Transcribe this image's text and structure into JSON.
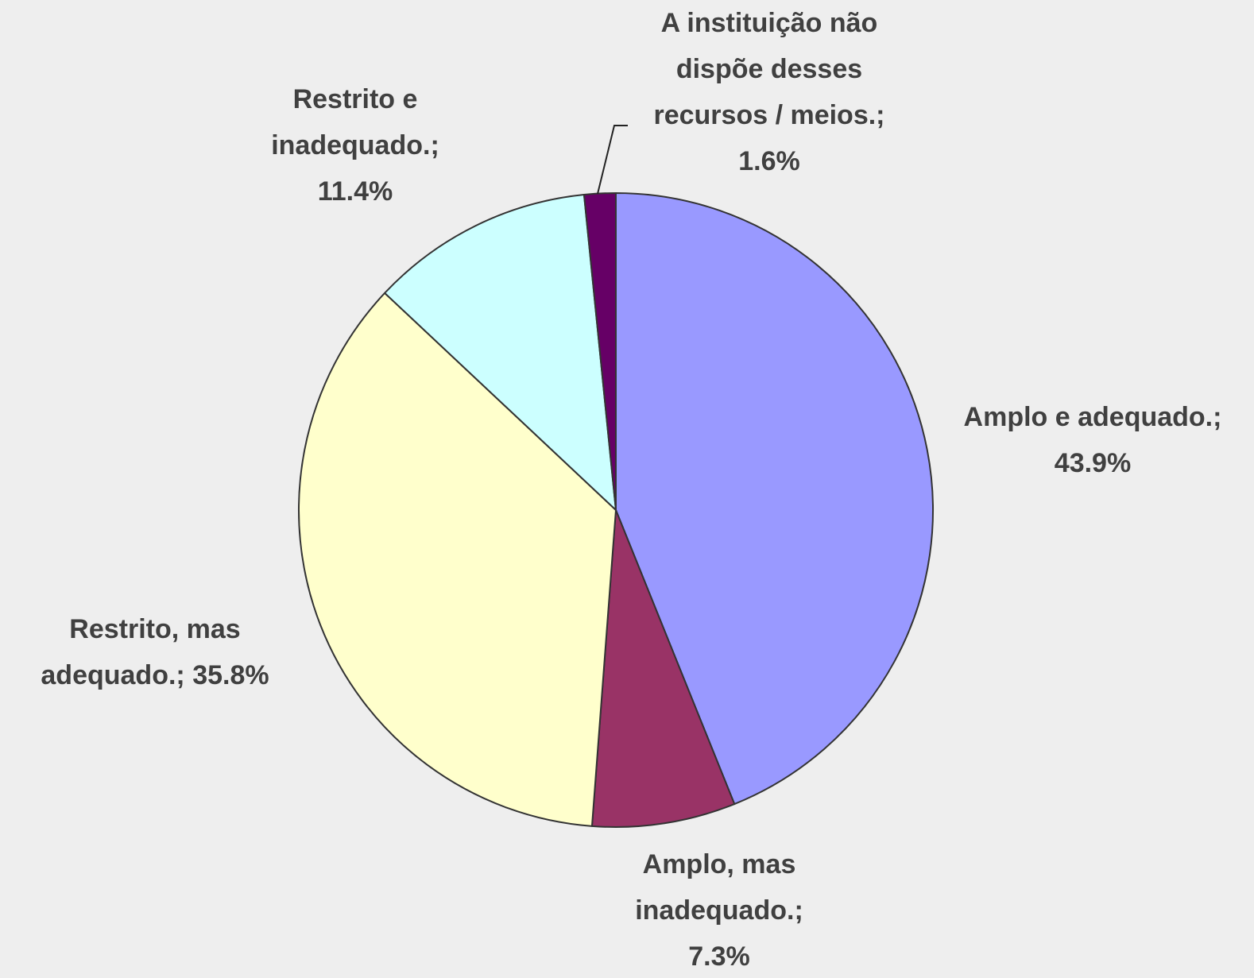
{
  "chart_data": {
    "type": "pie",
    "categories": [
      "Amplo e adequado.;",
      "Amplo, mas inadequado.;",
      "Restrito, mas adequado.;",
      "Restrito e inadequado.;",
      "A instituição não dispõe desses recursos / meios.;"
    ],
    "values": [
      43.9,
      7.3,
      35.8,
      11.4,
      1.6
    ],
    "value_labels": [
      "43.9%",
      "7.3%",
      "35.8%",
      "11.4%",
      "1.6%"
    ],
    "colors": [
      "#9999ff",
      "#993366",
      "#ffffcc",
      "#ccffff",
      "#660066"
    ]
  }
}
